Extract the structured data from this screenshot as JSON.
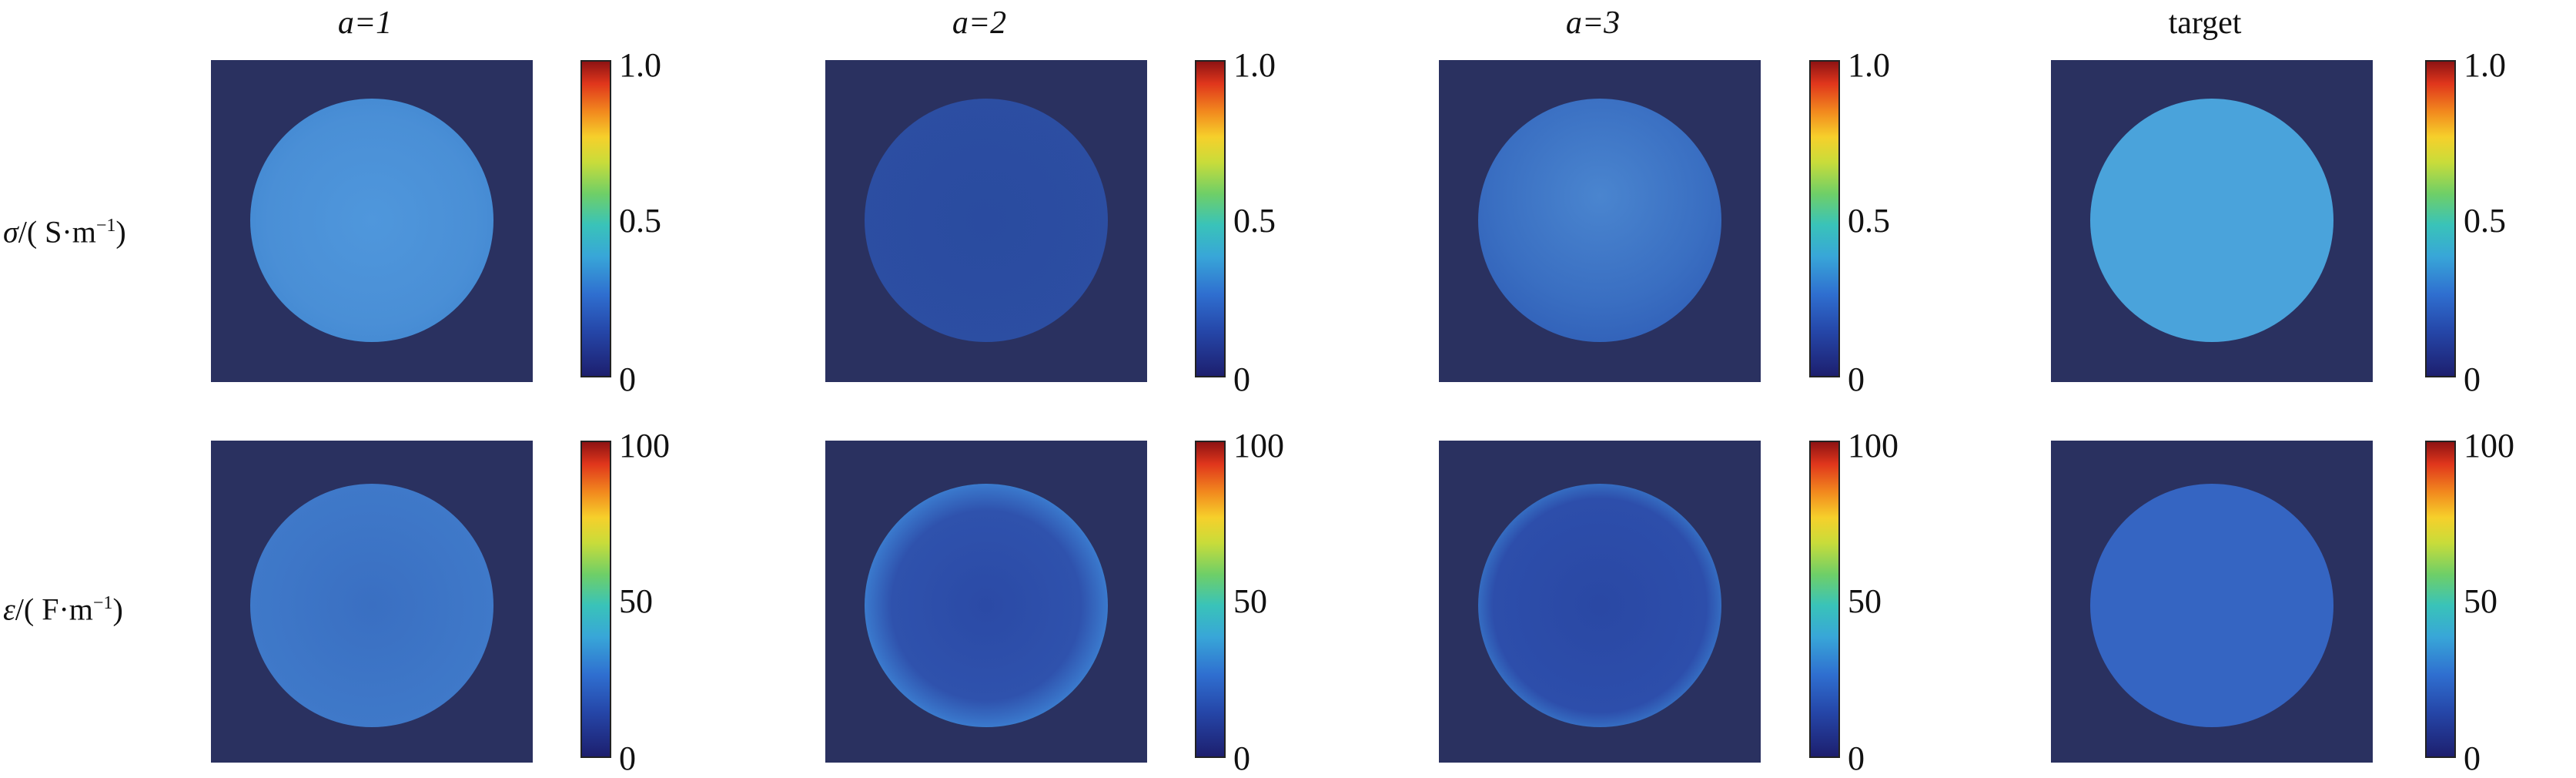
{
  "chart_data": {
    "type": "heatmap",
    "column_titles": [
      "a=1",
      "a=2",
      "a=3",
      "target"
    ],
    "row_labels": [
      {
        "symbol": "σ",
        "unit": "S·m",
        "exp": "−1"
      },
      {
        "symbol": "ε",
        "unit": "F·m",
        "exp": "−1"
      }
    ],
    "colormap": "jet",
    "colors": {
      "background": "#2a3160",
      "a1_sigma": "#4a8fd6",
      "a2_sigma": "#2c4ea2",
      "a3_sigma": "#3a6fc2",
      "target_sigma": "#4aa3db",
      "a1_eps": "#3f79c9",
      "a2_eps": "#2f52ad",
      "a3_eps": "#2d4eab",
      "target_eps": "#3565c2"
    },
    "rows": [
      {
        "quantity": "σ",
        "colorbar": {
          "min": 0,
          "max": 1.0,
          "ticks": [
            "0",
            "0.5",
            "1.0"
          ]
        },
        "inclusion_value_estimate": [
          0.35,
          0.12,
          0.22,
          0.35
        ]
      },
      {
        "quantity": "ε",
        "colorbar": {
          "min": 0,
          "max": 100,
          "ticks": [
            "0",
            "50",
            "100"
          ]
        },
        "inclusion_value_estimate": [
          20,
          10,
          8,
          15
        ]
      }
    ]
  }
}
